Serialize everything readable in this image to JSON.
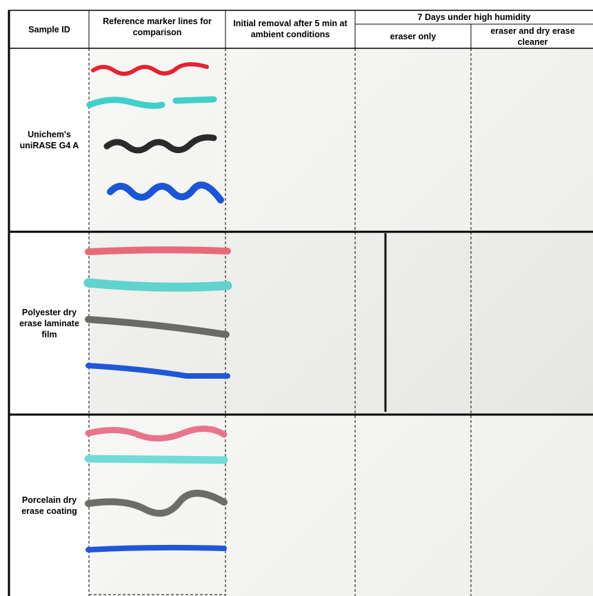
{
  "table": {
    "header": {
      "sample_id": "Sample ID",
      "reference": "Reference marker lines for comparison",
      "initial": "Initial removal after 5 min at ambient conditions",
      "humidity": "7 Days under high humidity",
      "eraser_only": "eraser only",
      "eraser_cleaner": "eraser and dry erase cleaner"
    },
    "rows": [
      {
        "sample": "Unichem's uniRASE G4 A"
      },
      {
        "sample": "Polyester dry erase laminate film"
      },
      {
        "sample": "Porcelain dry erase coating"
      }
    ]
  }
}
